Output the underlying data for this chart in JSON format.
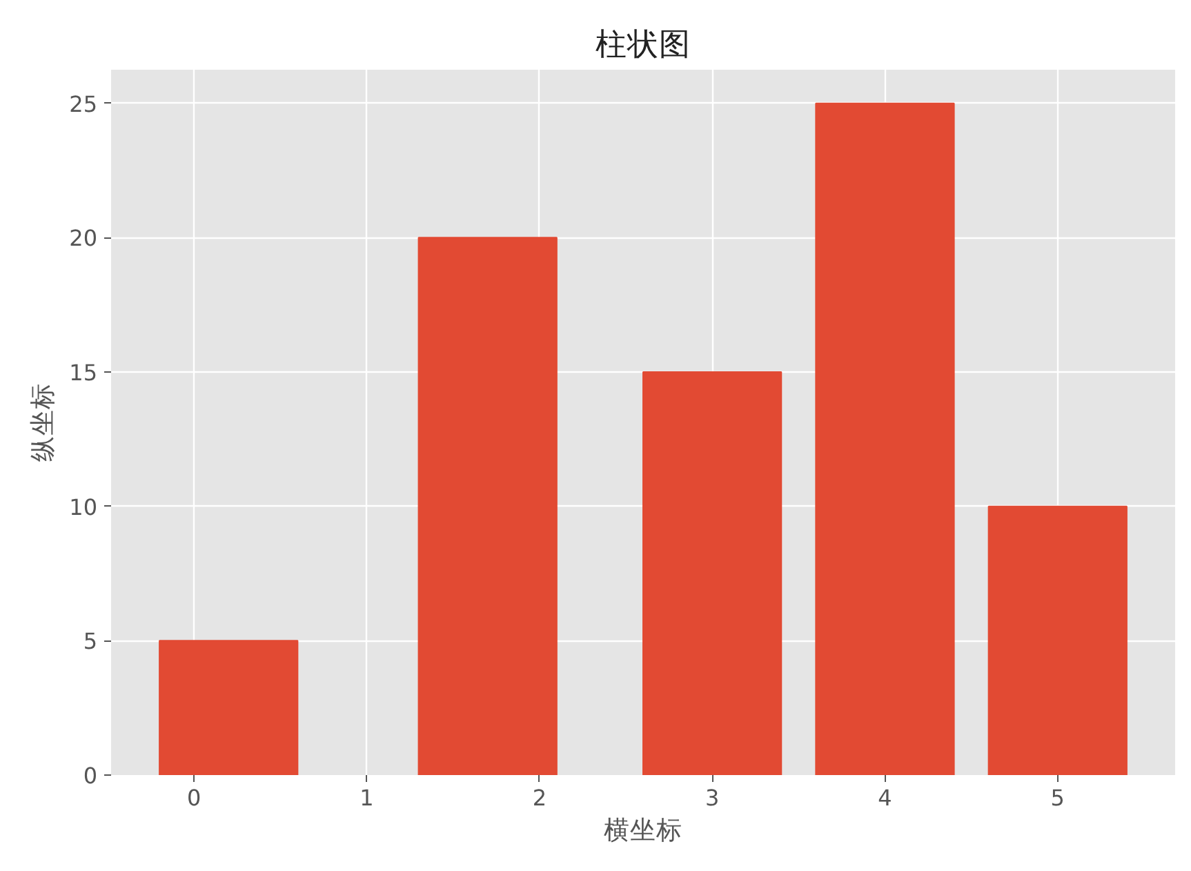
{
  "chart_data": {
    "type": "bar",
    "title": "柱状图",
    "xlabel": "横坐标",
    "ylabel": "纵坐标",
    "x": [
      0.2,
      1.7,
      3,
      4,
      5
    ],
    "values": [
      5,
      20,
      15,
      25,
      10
    ],
    "color": "#e24a33",
    "xlim": [
      -0.48,
      5.68
    ],
    "xticks": [
      0,
      1,
      2,
      3,
      4,
      5
    ],
    "ylim": [
      0,
      26.25
    ],
    "yticks": [
      0,
      5,
      10,
      15,
      20,
      25
    ],
    "grid": true
  }
}
